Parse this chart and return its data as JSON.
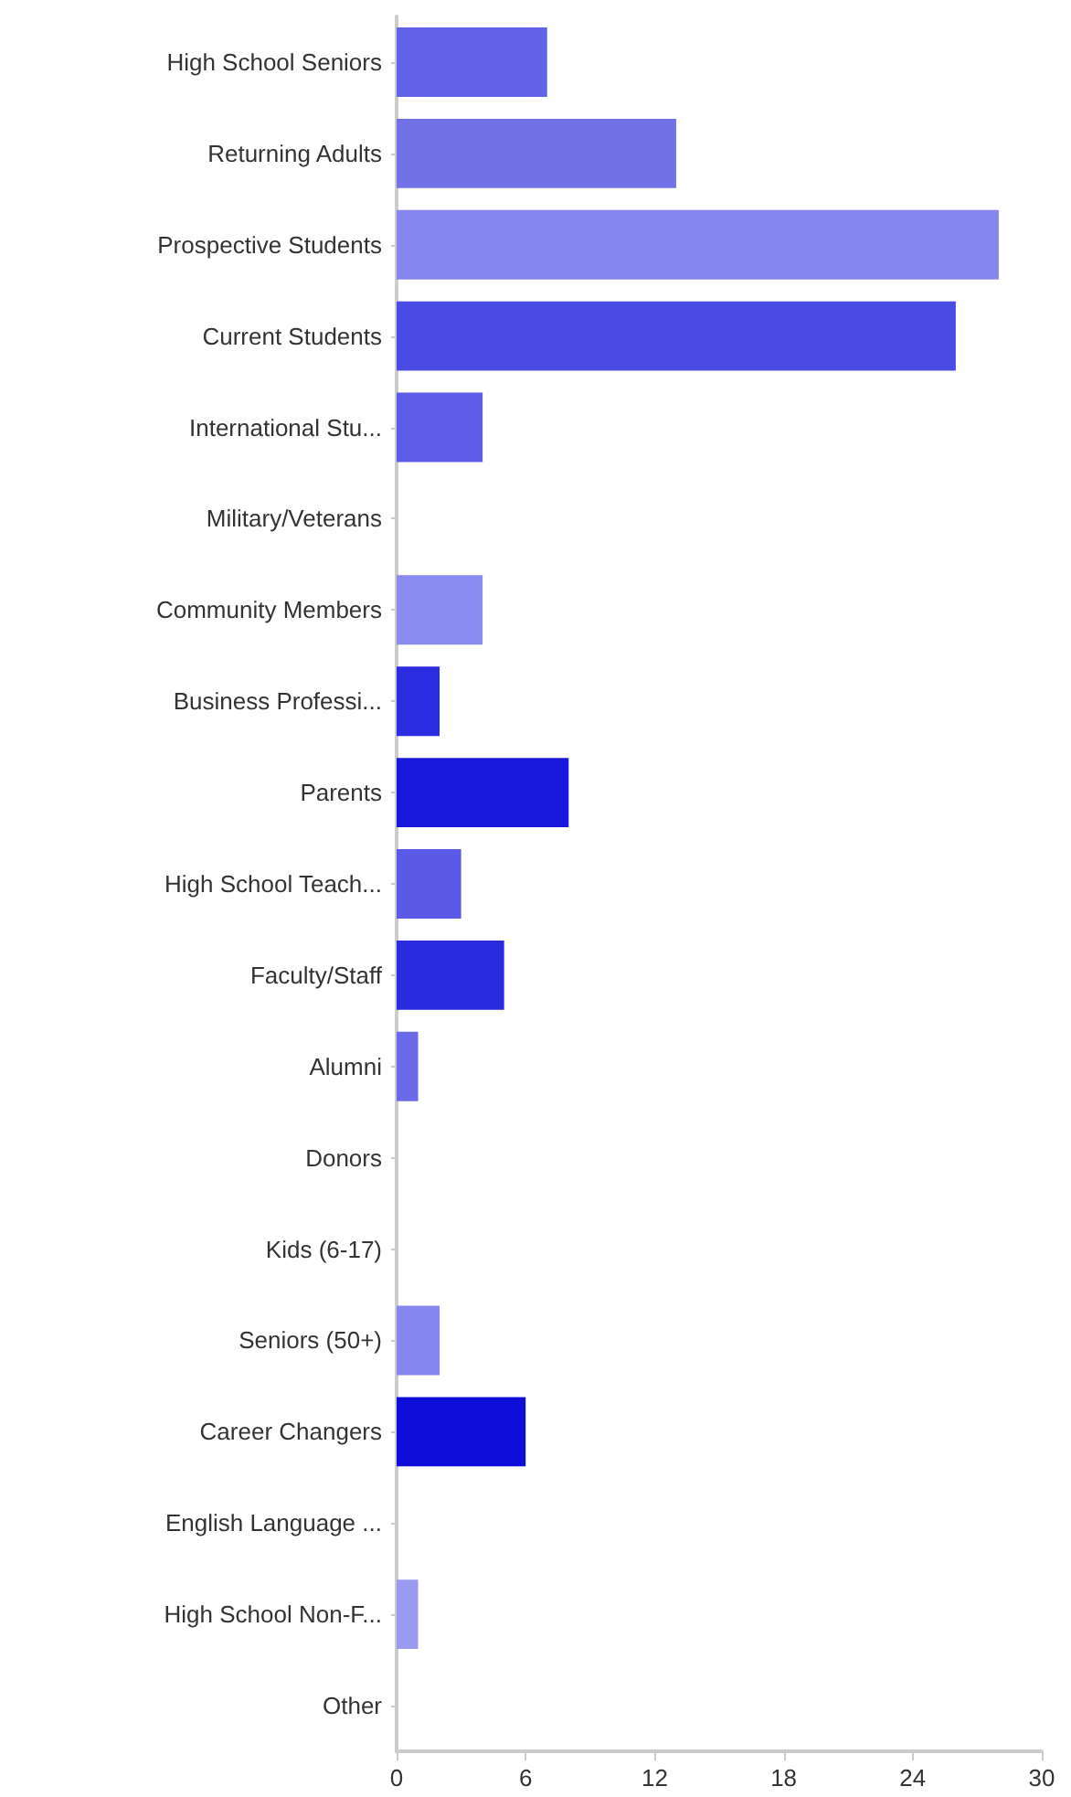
{
  "chart_data": {
    "type": "bar",
    "orientation": "horizontal",
    "categories": [
      "High School Seniors",
      "Returning Adults",
      "Prospective Students",
      "Current Students",
      "International Stu...",
      "Military/Veterans",
      "Community Members",
      "Business Professi...",
      "Parents",
      "High School Teach...",
      "Faculty/Staff",
      "Alumni",
      "Donors",
      "Kids (6-17)",
      "Seniors (50+)",
      "Career Changers",
      "English Language ...",
      "High School Non-F...",
      "Other"
    ],
    "values": [
      7,
      13,
      28,
      26,
      4,
      0,
      4,
      2,
      8,
      3,
      5,
      1,
      0,
      0,
      2,
      6,
      0,
      1,
      0
    ],
    "colors": [
      "#6262e8",
      "#7272e6",
      "#8686ee",
      "#4a4ae4",
      "#5c5ce8",
      "#6a6ae8",
      "#8a8aef",
      "#2b2be0",
      "#1818dd",
      "#5a5ae6",
      "#2a2ade",
      "#6a6ae8",
      "#6a6ae8",
      "#6a6ae8",
      "#8686ee",
      "#0e0ed8",
      "#6a6ae8",
      "#9a9af0",
      "#6a6ae8"
    ],
    "xlim": [
      0,
      30
    ],
    "xticks": [
      0,
      6,
      12,
      18,
      24,
      30
    ],
    "grid": false
  }
}
